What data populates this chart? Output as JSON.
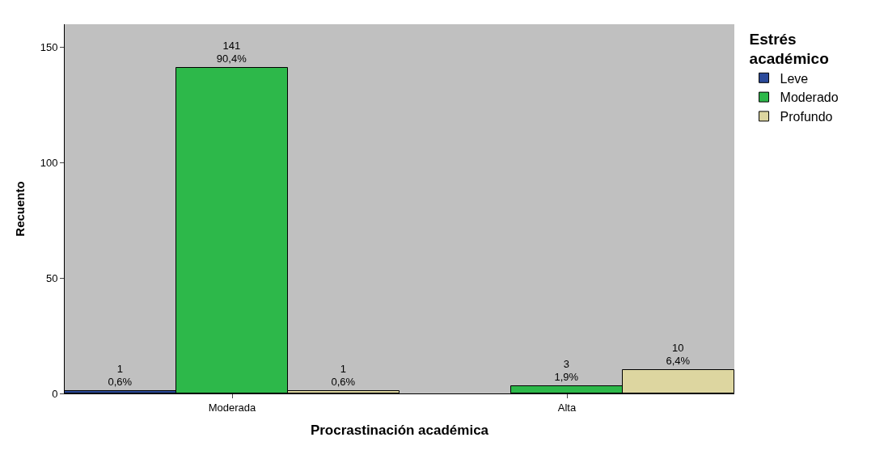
{
  "chart_data": {
    "type": "bar",
    "xlabel": "Procrastinación académica",
    "ylabel": "Recuento",
    "legend_title": "Estrés\nacadémico",
    "categories": [
      "Moderada",
      "Alta"
    ],
    "series": [
      {
        "name": "Leve",
        "color": "#2b4a9a",
        "values": [
          1,
          null
        ],
        "value_labels": [
          "1\n0,6%",
          null
        ]
      },
      {
        "name": "Moderado",
        "color": "#2db84a",
        "values": [
          141,
          3
        ],
        "value_labels": [
          "141\n90,4%",
          "3\n1,9%"
        ]
      },
      {
        "name": "Profundo",
        "color": "#ddd6a0",
        "values": [
          1,
          10
        ],
        "value_labels": [
          "1\n0,6%",
          "10\n6,4%"
        ]
      }
    ],
    "ylim": [
      0,
      160
    ],
    "yticks": [
      0,
      50,
      100,
      150
    ],
    "grid": false,
    "legend": "top right"
  }
}
